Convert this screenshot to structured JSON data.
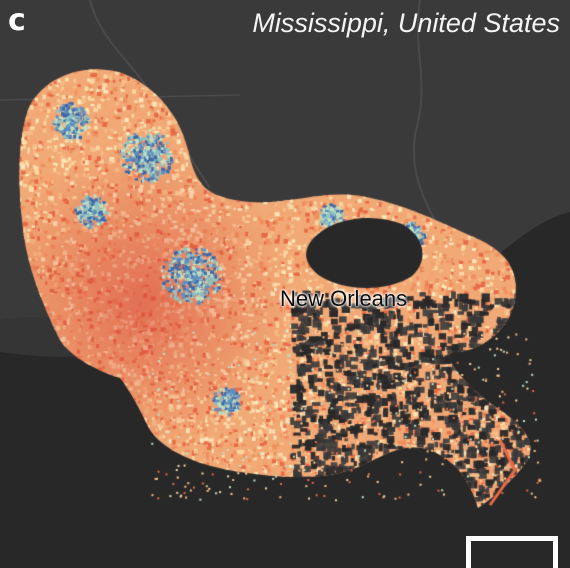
{
  "panel": {
    "letter": "c"
  },
  "map": {
    "title": "Mississippi, United States",
    "city_label": "New Orleans",
    "colors": {
      "water": "#282829",
      "land": "#3a3a3b",
      "coast_line": "#4a4a4c",
      "low_value": "#d7463a",
      "mid_value": "#fcd9a2",
      "high_value": "#3e68a8"
    }
  },
  "scale_bar": {
    "visible": true
  }
}
